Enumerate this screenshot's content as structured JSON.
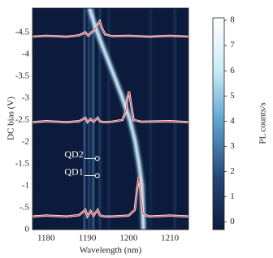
{
  "chart_data": {
    "type": "heatmap-spectra",
    "xlabel": "Wavelength (nm)",
    "ylabel": "DC bias (V)",
    "colorbar_label": "PL counts/s",
    "xlim": [
      1176.7,
      1214.5
    ],
    "ylim": [
      0,
      -5.05
    ],
    "xticks": [
      1180,
      1190,
      1200,
      1210
    ],
    "yticks": [
      0,
      {
        "value": -0.5,
        "label": "-.5"
      },
      -1,
      -1.5,
      -2,
      -2.5,
      -3,
      -3.5,
      -4,
      -4.5
    ],
    "clim": [
      -0.3,
      8.1
    ],
    "cticks": [
      0,
      1,
      2,
      3,
      4,
      5,
      6,
      7,
      8
    ],
    "stripes": {
      "x": [
        1189.3,
        1190.4,
        1191.4,
        1193.0,
        1195.2,
        1205.3,
        1211.2
      ],
      "values": [
        2.5,
        2.0,
        2.8,
        1.6,
        0.8,
        0.7,
        0.9
      ]
    },
    "ridge": {
      "x": [
        1190.5,
        1192,
        1194,
        1196.5,
        1198.5,
        1200.3,
        1201.6,
        1202.5,
        1203.2,
        1203.6
      ],
      "y": [
        -5.05,
        -4.6,
        -4.1,
        -3.5,
        -3,
        -2.5,
        -2,
        -1.5,
        -1,
        0
      ]
    },
    "series": [
      {
        "color": "#e0303a",
        "x": [
          1176.7,
          1180,
          1185,
          1188,
          1189.5,
          1190,
          1190.8,
          1191.5,
          1192.5,
          1193,
          1194,
          1196,
          1200,
          1201.5,
          1202,
          1202.5,
          1203,
          1203.5,
          1205,
          1210,
          1214.5
        ],
        "values": [
          -0.3,
          -0.32,
          -0.3,
          -0.33,
          -0.45,
          -0.3,
          -0.42,
          -0.32,
          -0.45,
          -0.33,
          -0.3,
          -0.3,
          -0.32,
          -0.45,
          -0.9,
          -1.2,
          -0.8,
          -0.35,
          -0.3,
          -0.32,
          -0.3
        ]
      },
      {
        "color": "#e0303a",
        "x": [
          1176.7,
          1180,
          1185,
          1188,
          1189.5,
          1190,
          1190.8,
          1191.5,
          1192.5,
          1193,
          1194,
          1196,
          1198.5,
          1199.3,
          1199.7,
          1200.1,
          1200.6,
          1201.2,
          1203,
          1210,
          1214.5
        ],
        "values": [
          -2.45,
          -2.47,
          -2.45,
          -2.47,
          -2.55,
          -2.45,
          -2.52,
          -2.46,
          -2.55,
          -2.47,
          -2.45,
          -2.46,
          -2.5,
          -2.7,
          -3.0,
          -3.15,
          -2.85,
          -2.5,
          -2.46,
          -2.47,
          -2.45
        ]
      },
      {
        "color": "#e0303a",
        "x": [
          1176.7,
          1180,
          1185,
          1188,
          1189.5,
          1190.2,
          1191,
          1191.8,
          1192.5,
          1193,
          1193.5,
          1194.3,
          1196,
          1200,
          1205,
          1210,
          1214.5
        ],
        "values": [
          -4.4,
          -4.42,
          -4.4,
          -4.43,
          -4.5,
          -4.42,
          -4.5,
          -4.55,
          -4.68,
          -4.75,
          -4.6,
          -4.45,
          -4.41,
          -4.42,
          -4.4,
          -4.42,
          -4.4
        ]
      }
    ],
    "annotations": [
      {
        "text": "QD2",
        "x": 1192.4,
        "y": -1.62
      },
      {
        "text": "QD1",
        "x": 1192.4,
        "y": -1.23
      }
    ]
  }
}
